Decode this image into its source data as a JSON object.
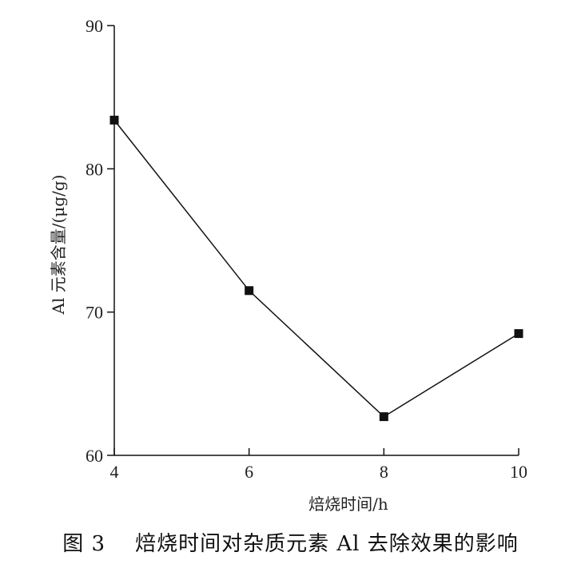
{
  "caption": "图 3    焙烧时间对杂质元素 Al 去除效果的影响",
  "chart_data": {
    "type": "line",
    "title": "",
    "xlabel": "焙烧时间/h",
    "ylabel": "Al  元素含量/(μg/g)",
    "x": [
      4,
      6,
      8,
      10
    ],
    "series": [
      {
        "values": [
          83.4,
          71.5,
          62.7,
          68.5
        ]
      }
    ],
    "xlim": [
      4,
      10
    ],
    "ylim": [
      60,
      90
    ],
    "xticks": [
      "4",
      "6",
      "8",
      "10"
    ],
    "yticks": [
      "60",
      "70",
      "80",
      "90"
    ],
    "grid": false,
    "marker": "square",
    "line_color": "#111111"
  }
}
